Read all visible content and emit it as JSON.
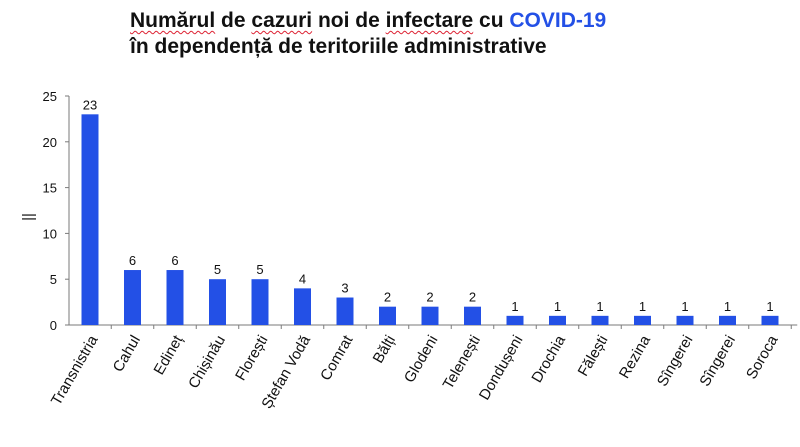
{
  "title": {
    "line1_part1": "Numărul",
    "line1_part2": "de",
    "line1_part3": "cazuri",
    "line1_part4": "noi de",
    "line1_part5": "infectare",
    "line1_part6": "cu",
    "line1_accent": "COVID-19",
    "line2": "în dependență de teritoriile administrative",
    "accent_color": "#2350e6"
  },
  "chart_data": {
    "type": "bar",
    "categories": [
      "Transnistria",
      "Cahul",
      "Edineț",
      "Chișinău",
      "Florești",
      "Ștefan Vodă",
      "Comrat",
      "Bălți",
      "Glodeni",
      "Telenești",
      "Dondușeni",
      "Drochia",
      "Fălești",
      "Rezina",
      "Sîngerei",
      "Sîngerei",
      "Soroca"
    ],
    "values": [
      23,
      6,
      6,
      5,
      5,
      4,
      3,
      2,
      2,
      2,
      1,
      1,
      1,
      1,
      1,
      1,
      1
    ],
    "data_labels": [
      "23",
      "6",
      "6",
      "5",
      "5",
      "4",
      "3",
      "2",
      "2",
      "2",
      "1",
      "1",
      "1",
      "1",
      "1",
      "1",
      "1"
    ],
    "yticks": [
      0,
      5,
      10,
      15,
      20,
      25
    ],
    "ylim": [
      0,
      25
    ],
    "ylabel": "||",
    "bar_color": "#2350e6",
    "grid": false,
    "legend": "none"
  }
}
